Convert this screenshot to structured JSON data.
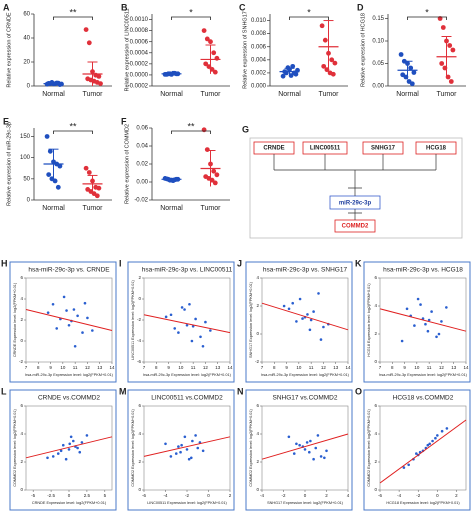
{
  "chart_data": [
    {
      "type": "dot",
      "panel": "A",
      "ylabel": "Relative expression of CRNDE",
      "categories": [
        "Normal",
        "Tumor"
      ],
      "significance": "**",
      "groups": [
        {
          "color": "#1f4fbf",
          "values": [
            1.5,
            2,
            1.8,
            2.5,
            1.2,
            2.2,
            3,
            1.9,
            2.4,
            1.6
          ],
          "mean": 2,
          "sd": 0.5
        },
        {
          "color": "#e0303a",
          "values": [
            47,
            36,
            12,
            9,
            8,
            6,
            5,
            4,
            3,
            2
          ],
          "mean": 10,
          "sd": 10
        }
      ],
      "ylim": [
        0,
        60
      ],
      "yticks": [
        0,
        20,
        40,
        60
      ]
    },
    {
      "type": "dot",
      "panel": "B",
      "ylabel": "Relative expression of LINC00511",
      "categories": [
        "Normal",
        "Tumor"
      ],
      "significance": "*",
      "groups": [
        {
          "color": "#1f4fbf",
          "values": [
            1e-05,
            2e-05,
            1e-05,
            3e-05,
            2e-05,
            1e-05,
            2e-05,
            3e-05,
            2e-05
          ],
          "mean": 2e-05,
          "sd": 1e-05
        },
        {
          "color": "#e0303a",
          "values": [
            0.0008,
            0.00065,
            0.0006,
            0.0004,
            0.0003,
            0.0002,
            0.00015,
            0.0001,
            5e-05
          ],
          "mean": 0.00028,
          "sd": 0.00026
        }
      ],
      "ylim": [
        -0.0002,
        0.0011
      ],
      "yticks": [
        {
          "value": -0.0002,
          "label": "-0.0002"
        },
        {
          "value": 0,
          "label": "0.0000"
        },
        {
          "value": 0.0002,
          "label": "0.0002"
        },
        {
          "value": 0.0004,
          "label": "0.0004"
        },
        {
          "value": 0.0006,
          "label": "0.0006"
        },
        {
          "value": 0.0008,
          "label": "0.0008"
        },
        {
          "value": 0.001,
          "label": "0.0010"
        }
      ]
    },
    {
      "type": "dot",
      "panel": "C",
      "ylabel": "Relative expression of SNHG17",
      "categories": [
        "Normal",
        "Tumor"
      ],
      "significance": "*",
      "groups": [
        {
          "color": "#1f4fbf",
          "values": [
            0.0015,
            0.002,
            0.0025,
            0.003,
            0.0018,
            0.0022,
            0.0028,
            0.0016,
            0.002,
            0.0024
          ],
          "mean": 0.0022,
          "sd": 0.0005
        },
        {
          "color": "#e0303a",
          "values": [
            0.0092,
            0.007,
            0.005,
            0.004,
            0.0035,
            0.003,
            0.0025,
            0.002,
            0.0018
          ],
          "mean": 0.006,
          "sd": 0.004
        }
      ],
      "ylim": [
        0,
        0.011
      ],
      "yticks": [
        {
          "value": 0,
          "label": "0.000"
        },
        {
          "value": 0.002,
          "label": "0.002"
        },
        {
          "value": 0.004,
          "label": "0.004"
        },
        {
          "value": 0.006,
          "label": "0.006"
        },
        {
          "value": 0.008,
          "label": "0.008"
        },
        {
          "value": 0.01,
          "label": "0.010"
        }
      ]
    },
    {
      "type": "dot",
      "panel": "D",
      "ylabel": "Relative expression of HCG18",
      "categories": [
        "Normal",
        "Tumor"
      ],
      "significance": "*",
      "groups": [
        {
          "color": "#1f4fbf",
          "values": [
            0.07,
            0.055,
            0.05,
            0.04,
            0.03,
            0.025,
            0.02,
            0.01,
            0.005
          ],
          "mean": 0.035,
          "sd": 0.02
        },
        {
          "color": "#e0303a",
          "values": [
            0.15,
            0.13,
            0.1,
            0.09,
            0.08,
            0.05,
            0.04,
            0.02,
            0.01
          ],
          "mean": 0.065,
          "sd": 0.045
        }
      ],
      "ylim": [
        0,
        0.16
      ],
      "yticks": [
        {
          "value": 0,
          "label": "0.00"
        },
        {
          "value": 0.05,
          "label": "0.05"
        },
        {
          "value": 0.1,
          "label": "0.10"
        },
        {
          "value": 0.15,
          "label": "0.15"
        }
      ]
    },
    {
      "type": "dot",
      "panel": "E",
      "ylabel": "Relative expression of miR-29c-3p",
      "categories": [
        "Normal",
        "Tumor"
      ],
      "significance": "**",
      "groups": [
        {
          "color": "#1f4fbf",
          "values": [
            150,
            115,
            90,
            85,
            80,
            60,
            50,
            45,
            30
          ],
          "mean": 85,
          "sd": 35
        },
        {
          "color": "#e0303a",
          "values": [
            75,
            65,
            45,
            30,
            28,
            25,
            20,
            15,
            10
          ],
          "mean": 38,
          "sd": 20
        }
      ],
      "ylim": [
        0,
        170
      ],
      "yticks": [
        0,
        50,
        100,
        150
      ]
    },
    {
      "type": "dot",
      "panel": "F",
      "ylabel": "Relative expression of COMMD2",
      "categories": [
        "Normal",
        "Tumor"
      ],
      "significance": "**",
      "groups": [
        {
          "color": "#1f4fbf",
          "values": [
            0.004,
            0.003,
            0.002,
            0.0025,
            0.003,
            0.0035,
            0.002,
            0.0015,
            0.003
          ],
          "mean": 0.003,
          "sd": 0.001
        },
        {
          "color": "#e0303a",
          "values": [
            0.058,
            0.036,
            0.02,
            0.012,
            0.008,
            0.006,
            0.004,
            0.002,
            -0.001
          ],
          "mean": 0.015,
          "sd": 0.02
        }
      ],
      "ylim": [
        -0.02,
        0.06
      ],
      "yticks": [
        {
          "value": -0.02,
          "label": "-0.02"
        },
        {
          "value": 0,
          "label": "0.00"
        },
        {
          "value": 0.02,
          "label": "0.02"
        },
        {
          "value": 0.04,
          "label": "0.04"
        },
        {
          "value": 0.06,
          "label": "0.06"
        }
      ]
    },
    {
      "type": "scatter",
      "panel": "H",
      "title": "hsa-miR-29c-3p vs. CRNDE",
      "xlabel": "hsa-miR-29c-3p Expression level: log2(FPKM+0.01)",
      "ylabel": "CRNDE Expression level: log2(FPKM+0.01)",
      "x": [
        9.2,
        9.8,
        10.1,
        10.5,
        10.9,
        11.2,
        11.6,
        12.0,
        10.3,
        9.5,
        11.8,
        10.7,
        12.4,
        8.8,
        11.0
      ],
      "y": [
        3.5,
        2.1,
        4.2,
        1.5,
        3.0,
        2.4,
        0.8,
        2.2,
        2.9,
        1.2,
        3.6,
        1.9,
        1.0,
        2.7,
        -0.5
      ],
      "trend": {
        "x": [
          7,
          14
        ],
        "y": [
          3,
          1
        ]
      },
      "xlim": [
        7,
        14
      ],
      "xticks": [
        7,
        8,
        9,
        10,
        11,
        12,
        13,
        14
      ],
      "ylim": [
        -2,
        6
      ],
      "yticks": [
        -2,
        0,
        2,
        4,
        6
      ]
    },
    {
      "type": "scatter",
      "panel": "I",
      "title": "hsa-miR-29c-3p vs. LINC00511",
      "xlabel": "hsa-miR-29c-3p Expression level: log2(FPKM+0.01)",
      "ylabel": "LINC00511 Expression level: log2(FPKM+0.01)",
      "x": [
        9.2,
        9.8,
        10.1,
        10.5,
        10.9,
        11.2,
        11.6,
        12.0,
        10.3,
        9.5,
        11.8,
        10.7,
        12.4,
        8.8,
        11.0
      ],
      "y": [
        -1.5,
        -3.2,
        -0.8,
        -2.5,
        -4.0,
        -1.9,
        -3.6,
        -2.2,
        -1.0,
        -2.8,
        -4.5,
        -0.5,
        -3.0,
        -1.7,
        -2.6
      ],
      "trend": {
        "x": [
          7,
          14
        ],
        "y": [
          -1.5,
          -3.2
        ]
      },
      "xlim": [
        7,
        14
      ],
      "xticks": [
        7,
        8,
        9,
        10,
        11,
        12,
        13,
        14
      ],
      "ylim": [
        -6,
        2
      ],
      "yticks": [
        -6,
        -4,
        -2,
        0,
        2
      ]
    },
    {
      "type": "scatter",
      "panel": "J",
      "title": "hsa-miR-29c-3p vs. SNHG17",
      "xlabel": "hsa-miR-29c-3p Expression level: log2(FPKM+0.01)",
      "ylabel": "SNHG17 Expression level: log2(FPKM+0.01)",
      "x": [
        9.2,
        9.8,
        10.1,
        10.5,
        10.9,
        11.2,
        11.6,
        12.0,
        10.3,
        9.5,
        11.8,
        10.7,
        12.4,
        8.8,
        11.0
      ],
      "y": [
        1.8,
        0.9,
        2.5,
        1.2,
        0.3,
        1.6,
        2.9,
        0.5,
        1.1,
        2.2,
        -0.4,
        1.4,
        0.7,
        2.0,
        1.0
      ],
      "trend": {
        "x": [
          7,
          14
        ],
        "y": [
          2.2,
          0.3
        ]
      },
      "xlim": [
        7,
        14
      ],
      "xticks": [
        7,
        8,
        9,
        10,
        11,
        12,
        13,
        14
      ],
      "ylim": [
        -2,
        4
      ],
      "yticks": [
        -2,
        0,
        2,
        4
      ]
    },
    {
      "type": "scatter",
      "panel": "K",
      "title": "hsa-miR-29c-3p vs. HCG18",
      "xlabel": "hsa-miR-29c-3p Expression level: log2(FPKM+0.01)",
      "ylabel": "HCG18 Expression level: log2(FPKM+0.01)",
      "x": [
        9.2,
        9.8,
        10.1,
        10.5,
        10.9,
        11.2,
        11.6,
        12.0,
        10.3,
        9.5,
        11.8,
        10.7,
        12.4,
        8.8,
        11.0
      ],
      "y": [
        3.8,
        2.6,
        4.5,
        3.1,
        2.2,
        3.6,
        1.8,
        2.9,
        4.1,
        3.3,
        2.0,
        2.7,
        3.9,
        1.5,
        3.0
      ],
      "trend": {
        "x": [
          7,
          14
        ],
        "y": [
          3.8,
          2.2
        ]
      },
      "xlim": [
        7,
        14
      ],
      "xticks": [
        7,
        8,
        9,
        10,
        11,
        12,
        13,
        14
      ],
      "ylim": [
        0,
        6
      ],
      "yticks": [
        0,
        2,
        4,
        6
      ]
    },
    {
      "type": "scatter",
      "panel": "L",
      "title": "CRNDE vs.COMMD2",
      "xlabel": "CRNDE Expression level: log2(FPKM+0.01)",
      "ylabel": "COMMD2 Expression level: log2(FPKM+0.01)",
      "x": [
        -1.5,
        -0.8,
        0,
        0.6,
        1.2,
        -2.2,
        0.3,
        1.8,
        -0.4,
        0.9,
        2.5,
        -1.1,
        0.1,
        1.5,
        -3.0
      ],
      "y": [
        2.6,
        3.2,
        2.9,
        3.5,
        3.0,
        2.4,
        3.8,
        3.4,
        2.2,
        3.1,
        3.9,
        2.8,
        3.3,
        2.7,
        2.3
      ],
      "trend": {
        "x": [
          -6,
          6
        ],
        "y": [
          2.3,
          3.8
        ]
      },
      "xlim": [
        -6,
        6
      ],
      "xticks": [
        -5,
        -2.5,
        0,
        2.5,
        5
      ],
      "ylim": [
        0,
        6
      ],
      "yticks": [
        0,
        2,
        4,
        6
      ]
    },
    {
      "type": "scatter",
      "panel": "M",
      "title": "LINC00511 vs.COMMD2",
      "xlabel": "LINC00511 Expression level: log2(FPKM+0.01)",
      "ylabel": "COMMD2 Expression level: log2(FPKM+0.01)",
      "x": [
        -3,
        -2.5,
        -2,
        -1.5,
        -1,
        -3.5,
        -2.2,
        -0.8,
        -1.8,
        -2.8,
        -1.2,
        -0.5,
        -4,
        -2.6,
        -1.6
      ],
      "y": [
        2.6,
        3.2,
        2.9,
        3.5,
        3.0,
        2.4,
        3.8,
        3.4,
        2.2,
        3.1,
        3.9,
        2.8,
        3.3,
        2.7,
        2.3
      ],
      "trend": {
        "x": [
          -6,
          2
        ],
        "y": [
          2.4,
          3.8
        ]
      },
      "xlim": [
        -6,
        2
      ],
      "xticks": [
        -6,
        -4,
        -2,
        0,
        2
      ],
      "ylim": [
        0,
        6
      ],
      "yticks": [
        0,
        2,
        4,
        6
      ]
    },
    {
      "type": "scatter",
      "panel": "N",
      "title": "SNHG17 vs.COMMD2",
      "xlabel": "SNHG17 Expression level: log2(FPKM+0.01)",
      "ylabel": "COMMD2 Expression level: log2(FPKM+0.01)",
      "x": [
        -1,
        -0.5,
        0,
        0.5,
        1,
        1.5,
        -1.5,
        0.2,
        0.8,
        -0.2,
        1.2,
        2,
        -0.8,
        0.4,
        1.8
      ],
      "y": [
        2.6,
        3.2,
        2.9,
        3.5,
        3.0,
        2.4,
        3.8,
        3.4,
        2.2,
        3.1,
        3.9,
        2.8,
        3.3,
        2.7,
        2.3
      ],
      "trend": {
        "x": [
          -4,
          4
        ],
        "y": [
          2.2,
          4
        ]
      },
      "xlim": [
        -4,
        4
      ],
      "xticks": [
        -4,
        -2,
        0,
        2,
        4
      ],
      "ylim": [
        0,
        6
      ],
      "yticks": [
        0,
        2,
        4,
        6
      ]
    },
    {
      "type": "scatter",
      "panel": "O",
      "title": "HCG18 vs.COMMD2",
      "xlabel": "HCG18 Expression level: log2(FPKM+0.01)",
      "ylabel": "COMMD2 Expression level: log2(FPKM+0.01)",
      "x": [
        -3,
        -2.5,
        -2,
        -1.5,
        -1,
        -0.5,
        0,
        -2.2,
        -1.2,
        -0.2,
        0.5,
        -3.5,
        -1.8,
        -0.8,
        1
      ],
      "y": [
        1.8,
        2.2,
        2.5,
        2.8,
        3.2,
        3.5,
        3.9,
        2.6,
        3.0,
        3.7,
        4.2,
        1.6,
        2.7,
        3.3,
        4.4
      ],
      "trend": {
        "x": [
          -6,
          3
        ],
        "y": [
          0.5,
          5
        ]
      },
      "xlim": [
        -6,
        3
      ],
      "xticks": [
        -6,
        -4,
        -2,
        0,
        2
      ],
      "ylim": [
        0,
        6
      ],
      "yticks": [
        0,
        2,
        4,
        6
      ]
    }
  ],
  "diagram": {
    "panel": "G",
    "nodes": [
      "CRNDE",
      "LINC00511",
      "SNHG17",
      "HCG18",
      "miR-29c-3p",
      "COMMD2"
    ]
  }
}
